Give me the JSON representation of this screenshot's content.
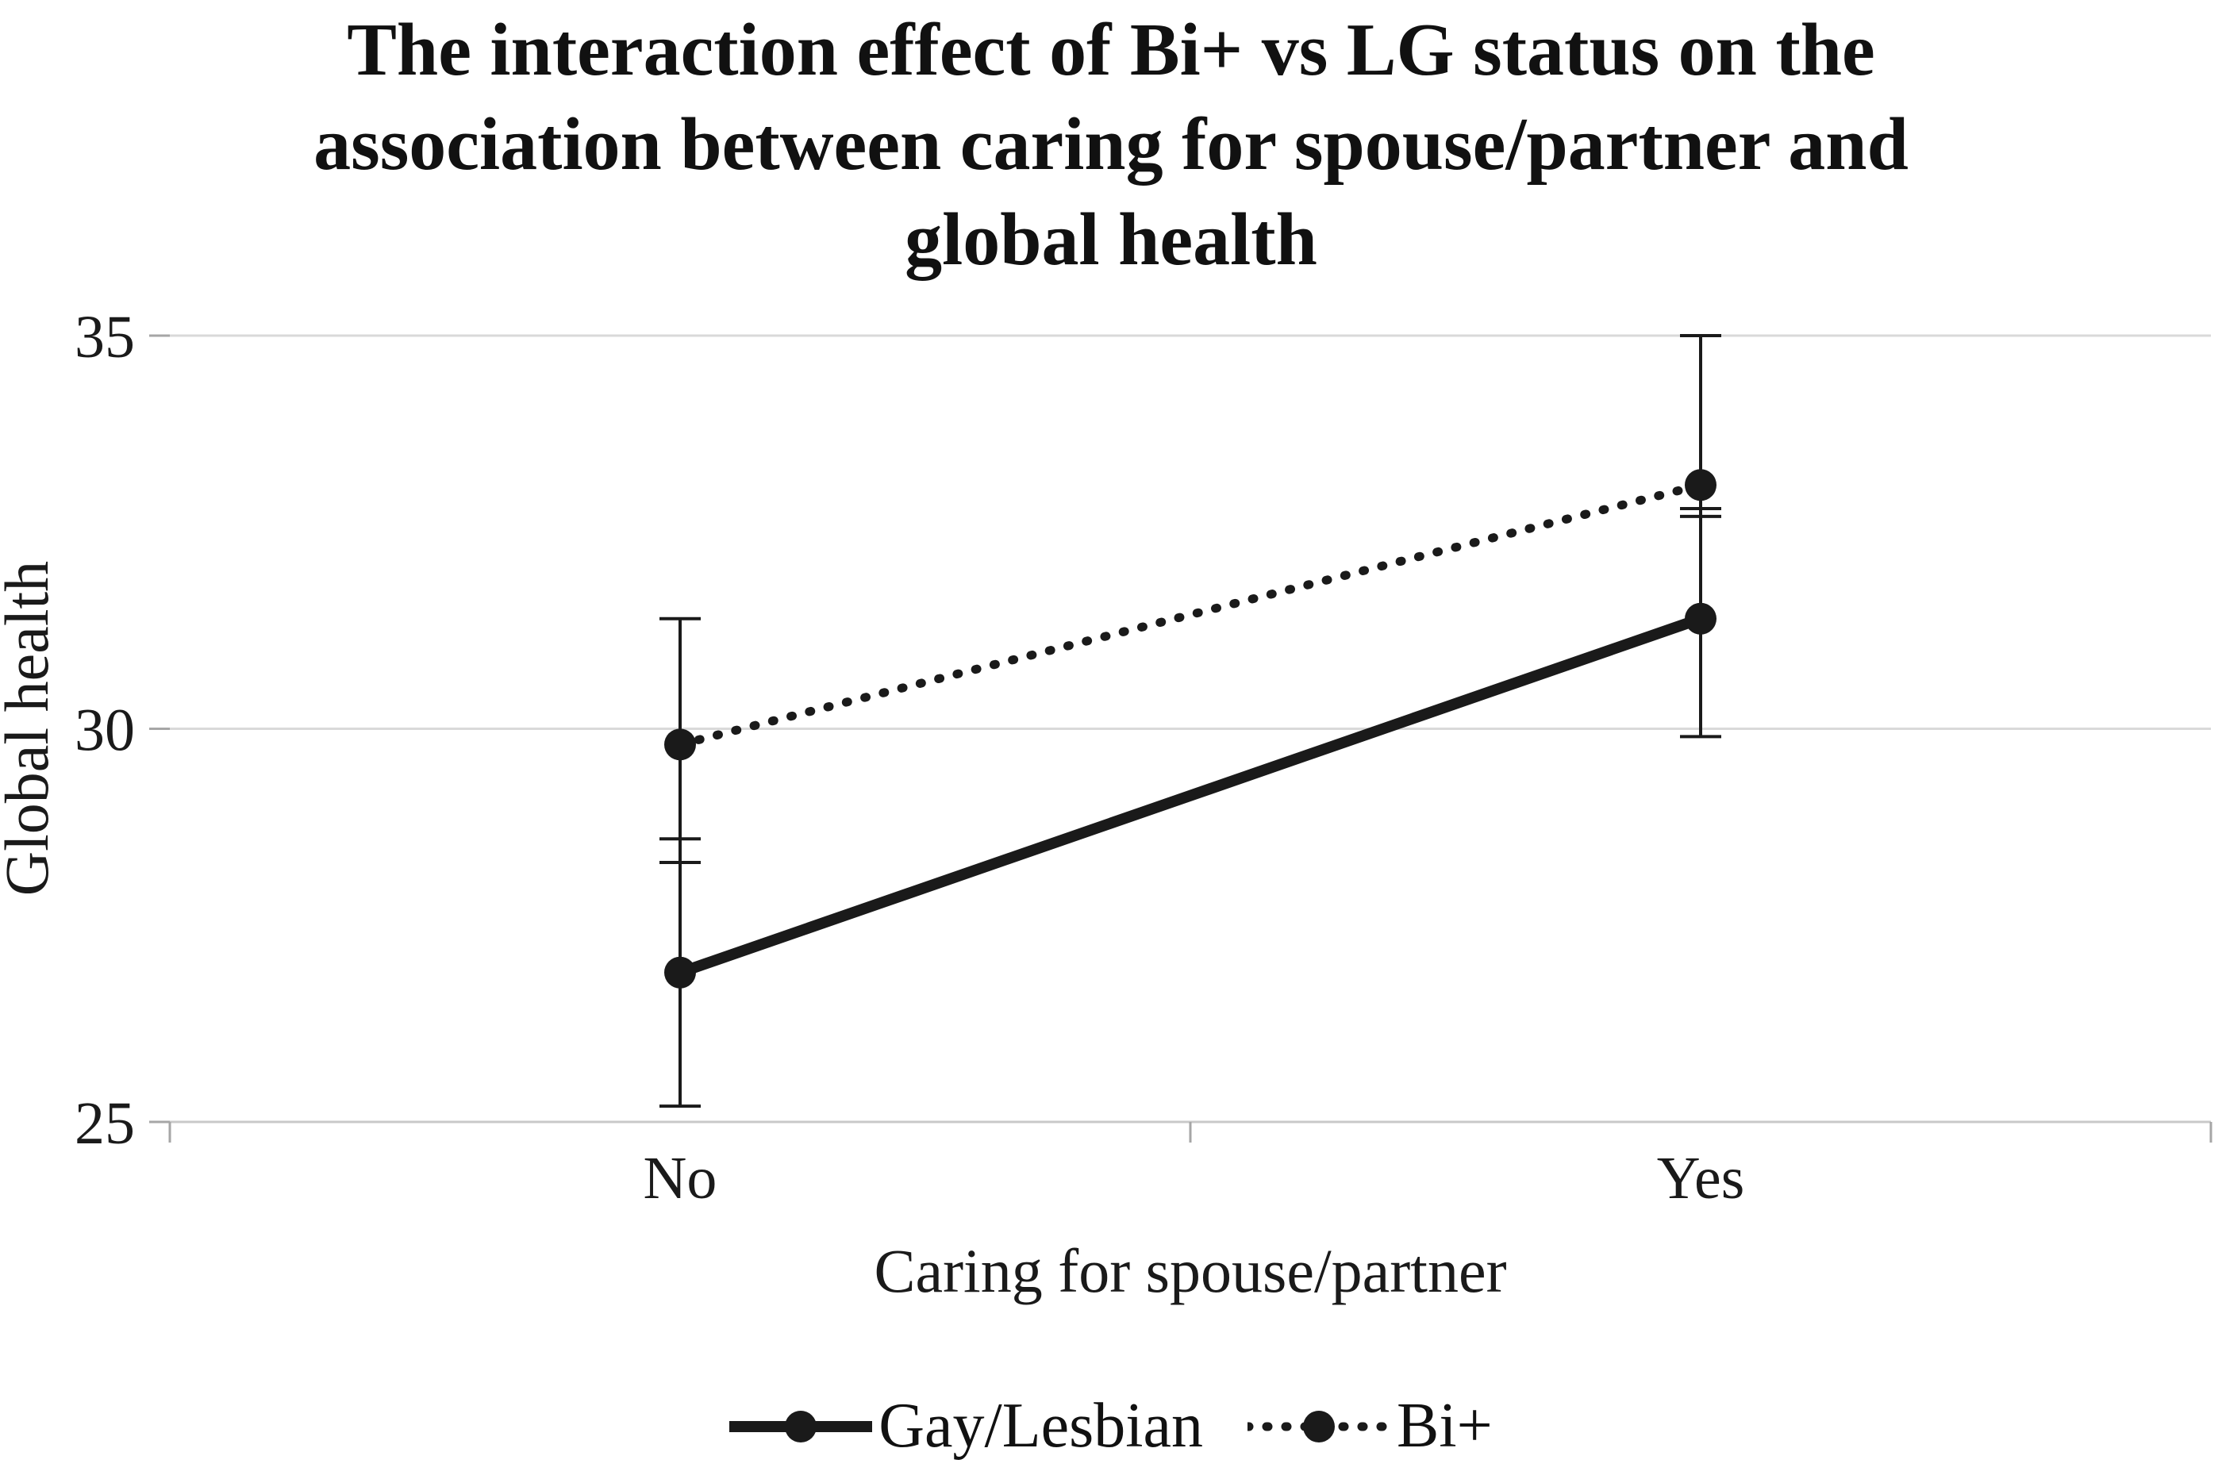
{
  "chart_data": {
    "type": "line",
    "title": "The interaction effect of Bi+ vs LG status on the association between caring for spouse/partner and global health",
    "title_lines": [
      "The interaction effect of Bi+ vs LG status on the",
      "association between caring for spouse/partner and",
      "global health"
    ],
    "xlabel": "Caring for spouse/partner",
    "ylabel": "Global health",
    "categories": [
      "No",
      "Yes"
    ],
    "ylim": [
      25,
      35
    ],
    "yticks": [
      25,
      30,
      35
    ],
    "grid": true,
    "legend_position": "bottom",
    "colors": {
      "grid": "#d9d9d9",
      "axis": "#c9c9c9",
      "tick": "#a6a6a6",
      "text": "#1a1a1a"
    },
    "series": [
      {
        "name": "Gay/Lesbian",
        "style": "solid",
        "color": "#1a1a1a",
        "values": [
          26.9,
          31.4
        ],
        "error_low": [
          25.2,
          29.9
        ],
        "error_high": [
          28.6,
          32.8
        ]
      },
      {
        "name": "Bi+",
        "style": "dotted",
        "color": "#1a1a1a",
        "values": [
          29.8,
          33.1
        ],
        "error_low": [
          28.3,
          32.7
        ],
        "error_high": [
          31.4,
          35.0
        ]
      }
    ]
  }
}
